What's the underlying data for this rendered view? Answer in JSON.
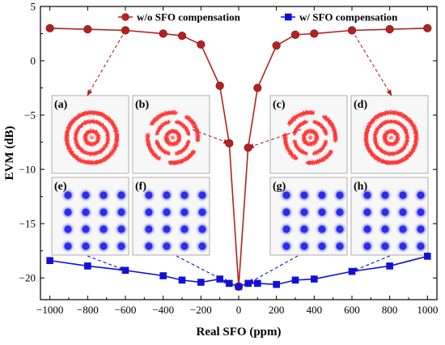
{
  "chart_data": {
    "type": "line",
    "xlabel": "Real SFO (ppm)",
    "ylabel": "EVM (dB)",
    "xlim": [
      -1050,
      1050
    ],
    "ylim": [
      -22,
      5
    ],
    "xticks": [
      -1000,
      -800,
      -600,
      -400,
      -200,
      0,
      200,
      400,
      600,
      800,
      1000
    ],
    "yticks": [
      -20,
      -15,
      -10,
      -5,
      0,
      5
    ],
    "xtick_labels": [
      "−1000",
      "−800",
      "−600",
      "−400",
      "−200",
      "0",
      "200",
      "400",
      "600",
      "800",
      "1000"
    ],
    "ytick_labels": [
      "−20",
      "−15",
      "−10",
      "−5",
      "0",
      "5"
    ],
    "legend_position": "top",
    "series": [
      {
        "name": "w/o SFO compensation",
        "color": "#b22222",
        "marker": "circle",
        "x": [
          -1000,
          -800,
          -600,
          -400,
          -300,
          -200,
          -100,
          -50,
          0,
          50,
          100,
          200,
          300,
          400,
          600,
          800,
          1000
        ],
        "y": [
          3.0,
          2.9,
          2.8,
          2.5,
          2.3,
          1.5,
          -2.3,
          -7.6,
          -20.8,
          -8.0,
          -2.5,
          1.4,
          2.4,
          2.5,
          2.8,
          2.9,
          3.0
        ]
      },
      {
        "name": "w/ SFO compensation",
        "color": "#1010d8",
        "marker": "square",
        "x": [
          -1000,
          -800,
          -600,
          -400,
          -300,
          -200,
          -100,
          -50,
          0,
          50,
          100,
          200,
          300,
          400,
          600,
          800,
          1000
        ],
        "y": [
          -18.4,
          -18.9,
          -19.3,
          -19.8,
          -20.2,
          -20.4,
          -20.1,
          -20.5,
          -20.8,
          -20.5,
          -20.5,
          -20.6,
          -20.2,
          -20.1,
          -19.4,
          -18.9,
          -18.0
        ]
      }
    ],
    "insets": {
      "ring_color": "#ff1a1a",
      "dot_color": "#1f1fe8",
      "labels": [
        "(a)",
        "(b)",
        "(c)",
        "(d)",
        "(e)",
        "(f)",
        "(g)",
        "(h)"
      ]
    }
  }
}
